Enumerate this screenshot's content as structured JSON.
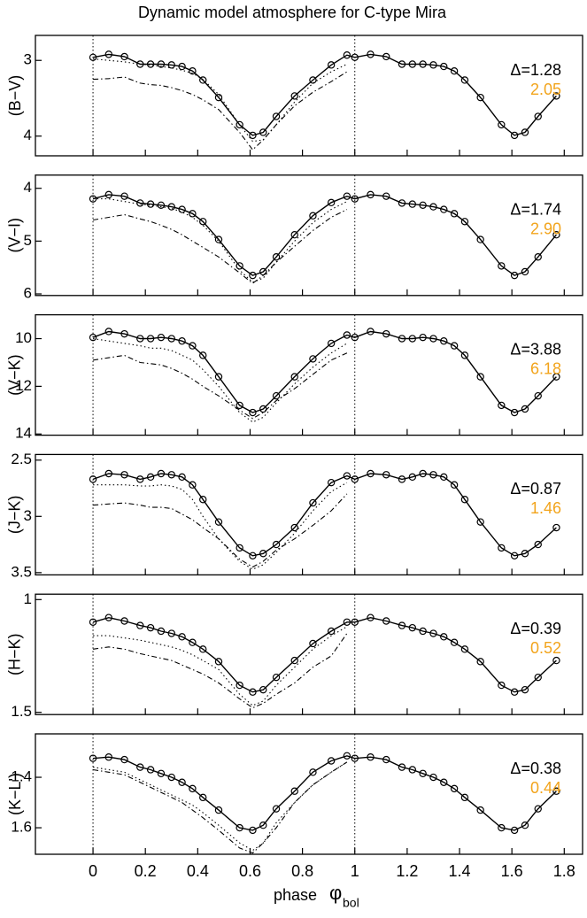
{
  "figure": {
    "title": "Dynamic model atmosphere for C-type Mira",
    "xlabel": "phase",
    "xsymbol": "φ",
    "xsubscript": "bol"
  },
  "x": [
    0,
    0.06,
    0.12,
    0.18,
    0.22,
    0.26,
    0.3,
    0.34,
    0.38,
    0.42,
    0.48,
    0.56,
    0.61,
    0.65,
    0.7,
    0.77,
    0.84,
    0.91,
    0.97,
    1.0,
    1.06,
    1.12,
    1.18,
    1.22,
    1.26,
    1.3,
    1.34,
    1.38,
    1.42,
    1.48,
    1.56,
    1.61,
    1.65,
    1.7,
    1.77
  ],
  "xlim": [
    -0.22,
    1.87
  ],
  "xticks": [
    0,
    0.2,
    0.4,
    0.6,
    0.8,
    1,
    1.2,
    1.4,
    1.6,
    1.8
  ],
  "vlines": [
    0,
    1
  ],
  "chart_data": [
    {
      "type": "line",
      "ylabel": "(B−V)",
      "ylim": [
        2.67,
        4.26
      ],
      "y_inverted": true,
      "yticks": [
        3,
        4
      ],
      "annotations": [
        {
          "text": "Δ=1.28",
          "color": "#000000"
        },
        {
          "text": "2.05",
          "color": "#f2a41c"
        }
      ],
      "series": [
        {
          "style": "solid",
          "markers": true,
          "color": "#000000",
          "values": [
            2.96,
            2.92,
            2.95,
            3.05,
            3.05,
            3.05,
            3.06,
            3.08,
            3.14,
            3.26,
            3.49,
            3.85,
            3.99,
            3.95,
            3.74,
            3.47,
            3.26,
            3.06,
            2.93,
            2.96,
            2.92,
            2.95,
            3.05,
            3.05,
            3.05,
            3.06,
            3.08,
            3.14,
            3.26,
            3.49,
            3.85,
            3.99,
            3.95,
            3.74,
            3.47
          ]
        },
        {
          "style": "dotted",
          "markers": false,
          "color": "#000000",
          "values": [
            2.98,
            3.0,
            3.02,
            3.05,
            3.06,
            3.08,
            3.1,
            3.13,
            3.17,
            3.25,
            3.45,
            3.85,
            4.07,
            4.05,
            3.85,
            3.55,
            3.3,
            3.15,
            3.05,
            null,
            null,
            null,
            null,
            null,
            null,
            null,
            null,
            null,
            null,
            null,
            null,
            null,
            null,
            null,
            null
          ]
        },
        {
          "style": "dashdot",
          "markers": false,
          "color": "#000000",
          "values": [
            3.25,
            3.24,
            3.22,
            3.3,
            3.32,
            3.33,
            3.36,
            3.4,
            3.45,
            3.52,
            3.65,
            3.95,
            4.18,
            4.05,
            3.85,
            3.6,
            3.42,
            3.28,
            3.15,
            null,
            null,
            null,
            null,
            null,
            null,
            null,
            null,
            null,
            null,
            null,
            null,
            null,
            null,
            null,
            null
          ]
        }
      ]
    },
    {
      "type": "line",
      "ylabel": "(V−I)",
      "ylim": [
        3.75,
        6.03
      ],
      "y_inverted": true,
      "yticks": [
        4,
        5,
        6
      ],
      "annotations": [
        {
          "text": "Δ=1.74",
          "color": "#000000"
        },
        {
          "text": "2.90",
          "color": "#f2a41c"
        }
      ],
      "series": [
        {
          "style": "solid",
          "markers": true,
          "color": "#000000",
          "values": [
            4.2,
            4.12,
            4.15,
            4.28,
            4.3,
            4.32,
            4.35,
            4.4,
            4.48,
            4.63,
            4.97,
            5.47,
            5.65,
            5.58,
            5.3,
            4.88,
            4.52,
            4.27,
            4.15,
            4.2,
            4.12,
            4.15,
            4.28,
            4.3,
            4.32,
            4.35,
            4.4,
            4.48,
            4.63,
            4.97,
            5.47,
            5.65,
            5.58,
            5.3,
            4.88
          ]
        },
        {
          "style": "dotted",
          "markers": false,
          "color": "#000000",
          "values": [
            4.2,
            4.2,
            4.25,
            4.3,
            4.32,
            4.35,
            4.38,
            4.45,
            4.55,
            4.7,
            5.0,
            5.55,
            5.78,
            5.7,
            5.4,
            5.0,
            4.65,
            4.4,
            4.25,
            null,
            null,
            null,
            null,
            null,
            null,
            null,
            null,
            null,
            null,
            null,
            null,
            null,
            null,
            null,
            null
          ]
        },
        {
          "style": "dashdot",
          "markers": false,
          "color": "#000000",
          "values": [
            4.6,
            4.55,
            4.5,
            4.58,
            4.63,
            4.7,
            4.78,
            4.88,
            5.0,
            5.12,
            5.3,
            5.6,
            5.8,
            5.65,
            5.4,
            5.1,
            4.8,
            4.55,
            4.4,
            null,
            null,
            null,
            null,
            null,
            null,
            null,
            null,
            null,
            null,
            null,
            null,
            null,
            null,
            null,
            null
          ]
        }
      ]
    },
    {
      "type": "line",
      "ylabel": "(V−K)",
      "ylim": [
        9.0,
        14.05
      ],
      "y_inverted": true,
      "yticks": [
        10,
        12,
        14
      ],
      "annotations": [
        {
          "text": "Δ=3.88",
          "color": "#000000"
        },
        {
          "text": "6.18",
          "color": "#f2a41c"
        }
      ],
      "series": [
        {
          "style": "solid",
          "markers": true,
          "color": "#000000",
          "values": [
            9.95,
            9.7,
            9.8,
            10.0,
            10.0,
            9.95,
            10.0,
            10.1,
            10.3,
            10.7,
            11.6,
            12.8,
            13.1,
            12.95,
            12.4,
            11.6,
            10.85,
            10.2,
            9.85,
            9.95,
            9.7,
            9.8,
            10.0,
            10.0,
            9.95,
            10.0,
            10.1,
            10.3,
            10.7,
            11.6,
            12.8,
            13.1,
            12.95,
            12.4,
            11.6
          ]
        },
        {
          "style": "dotted",
          "markers": false,
          "color": "#000000",
          "values": [
            10.0,
            10.1,
            10.2,
            10.3,
            10.4,
            10.4,
            10.5,
            10.7,
            10.9,
            11.3,
            12.0,
            13.1,
            13.5,
            13.3,
            12.7,
            11.9,
            11.2,
            10.6,
            10.2,
            null,
            null,
            null,
            null,
            null,
            null,
            null,
            null,
            null,
            null,
            null,
            null,
            null,
            null,
            null,
            null
          ]
        },
        {
          "style": "dashdot",
          "markers": false,
          "color": "#000000",
          "values": [
            10.9,
            10.8,
            10.7,
            11.0,
            11.05,
            11.1,
            11.25,
            11.45,
            11.7,
            12.0,
            12.4,
            13.0,
            13.35,
            13.1,
            12.6,
            12.1,
            11.5,
            10.9,
            10.6,
            null,
            null,
            null,
            null,
            null,
            null,
            null,
            null,
            null,
            null,
            null,
            null,
            null,
            null,
            null,
            null
          ]
        }
      ]
    },
    {
      "type": "line",
      "ylabel": "(J−K)",
      "ylim": [
        2.45,
        3.52
      ],
      "y_inverted": true,
      "yticks": [
        2.5,
        3,
        3.5
      ],
      "annotations": [
        {
          "text": "Δ=0.87",
          "color": "#000000"
        },
        {
          "text": "1.46",
          "color": "#f2a41c"
        }
      ],
      "series": [
        {
          "style": "solid",
          "markers": true,
          "color": "#000000",
          "values": [
            2.67,
            2.62,
            2.63,
            2.67,
            2.65,
            2.62,
            2.63,
            2.65,
            2.72,
            2.85,
            3.05,
            3.28,
            3.35,
            3.33,
            3.25,
            3.1,
            2.88,
            2.7,
            2.64,
            2.67,
            2.62,
            2.63,
            2.67,
            2.65,
            2.62,
            2.63,
            2.65,
            2.72,
            2.85,
            3.05,
            3.28,
            3.35,
            3.33,
            3.25,
            3.1
          ]
        },
        {
          "style": "dotted",
          "markers": false,
          "color": "#000000",
          "values": [
            2.72,
            2.72,
            2.72,
            2.73,
            2.73,
            2.72,
            2.73,
            2.76,
            2.85,
            3.0,
            3.2,
            3.4,
            3.47,
            3.43,
            3.32,
            3.15,
            2.95,
            2.78,
            2.7,
            null,
            null,
            null,
            null,
            null,
            null,
            null,
            null,
            null,
            null,
            null,
            null,
            null,
            null,
            null,
            null
          ]
        },
        {
          "style": "dashdot",
          "markers": false,
          "color": "#000000",
          "values": [
            2.9,
            2.89,
            2.88,
            2.9,
            2.92,
            2.92,
            2.93,
            2.98,
            3.03,
            3.1,
            3.2,
            3.38,
            3.45,
            3.4,
            3.3,
            3.2,
            3.08,
            2.95,
            2.8,
            null,
            null,
            null,
            null,
            null,
            null,
            null,
            null,
            null,
            null,
            null,
            null,
            null,
            null,
            null,
            null
          ]
        }
      ]
    },
    {
      "type": "line",
      "ylabel": "(H−K)",
      "ylim": [
        0.976,
        1.51
      ],
      "y_inverted": true,
      "yticks": [
        1,
        1.5
      ],
      "annotations": [
        {
          "text": "Δ=0.39",
          "color": "#000000"
        },
        {
          "text": "0.52",
          "color": "#f2a41c"
        }
      ],
      "series": [
        {
          "style": "solid",
          "markers": true,
          "color": "#000000",
          "values": [
            1.1,
            1.08,
            1.095,
            1.115,
            1.125,
            1.14,
            1.15,
            1.165,
            1.19,
            1.22,
            1.275,
            1.38,
            1.41,
            1.4,
            1.345,
            1.27,
            1.195,
            1.14,
            1.1,
            1.1,
            1.08,
            1.095,
            1.115,
            1.125,
            1.14,
            1.15,
            1.165,
            1.19,
            1.22,
            1.275,
            1.38,
            1.41,
            1.4,
            1.345,
            1.27
          ]
        },
        {
          "style": "dotted",
          "markers": false,
          "color": "#000000",
          "values": [
            1.16,
            1.16,
            1.17,
            1.18,
            1.19,
            1.2,
            1.21,
            1.225,
            1.245,
            1.27,
            1.31,
            1.42,
            1.47,
            1.45,
            1.38,
            1.3,
            1.22,
            1.16,
            1.12,
            null,
            null,
            null,
            null,
            null,
            null,
            null,
            null,
            null,
            null,
            null,
            null,
            null,
            null,
            null,
            null
          ]
        },
        {
          "style": "dashdot",
          "markers": false,
          "color": "#000000",
          "values": [
            1.22,
            1.21,
            1.22,
            1.24,
            1.25,
            1.26,
            1.27,
            1.29,
            1.31,
            1.33,
            1.37,
            1.44,
            1.48,
            1.46,
            1.42,
            1.37,
            1.3,
            1.25,
            1.15,
            null,
            null,
            null,
            null,
            null,
            null,
            null,
            null,
            null,
            null,
            null,
            null,
            null,
            null,
            null,
            null
          ]
        }
      ]
    },
    {
      "type": "line",
      "ylabel": "(K−L')",
      "ylim": [
        1.228,
        1.705
      ],
      "y_inverted": true,
      "yticks": [
        1.4,
        1.6
      ],
      "annotations": [
        {
          "text": "Δ=0.38",
          "color": "#000000"
        },
        {
          "text": "0.44",
          "color": "#f2a41c"
        }
      ],
      "series": [
        {
          "style": "solid",
          "markers": true,
          "color": "#000000",
          "values": [
            1.325,
            1.32,
            1.33,
            1.36,
            1.37,
            1.385,
            1.4,
            1.42,
            1.445,
            1.48,
            1.53,
            1.6,
            1.61,
            1.59,
            1.525,
            1.455,
            1.38,
            1.335,
            1.315,
            1.325,
            1.32,
            1.33,
            1.36,
            1.37,
            1.385,
            1.4,
            1.42,
            1.445,
            1.48,
            1.53,
            1.6,
            1.61,
            1.59,
            1.525,
            1.455
          ]
        },
        {
          "style": "dotted",
          "markers": false,
          "color": "#000000",
          "values": [
            1.36,
            1.37,
            1.38,
            1.41,
            1.43,
            1.45,
            1.47,
            1.49,
            1.51,
            1.54,
            1.59,
            1.66,
            1.69,
            1.66,
            1.58,
            1.5,
            1.43,
            1.38,
            1.34,
            null,
            null,
            null,
            null,
            null,
            null,
            null,
            null,
            null,
            null,
            null,
            null,
            null,
            null,
            null,
            null
          ]
        },
        {
          "style": "dashdot",
          "markers": false,
          "color": "#000000",
          "values": [
            1.37,
            1.38,
            1.39,
            1.42,
            1.44,
            1.46,
            1.48,
            1.5,
            1.53,
            1.56,
            1.61,
            1.68,
            1.7,
            1.66,
            1.6,
            1.5,
            1.43,
            1.38,
            1.34,
            null,
            null,
            null,
            null,
            null,
            null,
            null,
            null,
            null,
            null,
            null,
            null,
            null,
            null,
            null,
            null
          ]
        }
      ]
    }
  ]
}
